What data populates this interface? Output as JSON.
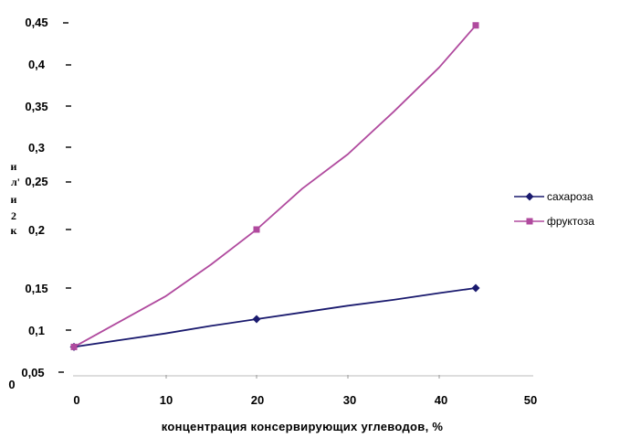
{
  "chart_data": {
    "type": "line",
    "xlabel": "концентрация консервирующих углеводов, %",
    "ylabel_parts": [
      "и",
      "л'",
      "и",
      "2",
      "к"
    ],
    "xlim": [
      0,
      50
    ],
    "ylim": [
      0.05,
      0.45
    ],
    "x_ticks": [
      "0",
      "10",
      "20",
      "30",
      "40",
      "50"
    ],
    "y_ticks": [
      "0,05",
      "0,1",
      "0,15",
      "0,2",
      "0,25",
      "0,3",
      "0,35",
      "0,4",
      "0,45"
    ],
    "y_zero_label": "0",
    "grid": false,
    "legend_position": "right",
    "series": [
      {
        "name": "сахароза",
        "color": "#1a1a6e",
        "marker": "diamond",
        "points": [
          [
            0,
            0.08
          ],
          [
            20,
            0.113
          ],
          [
            44,
            0.15
          ]
        ],
        "curve": [
          [
            0,
            0.08
          ],
          [
            5,
            0.088
          ],
          [
            10,
            0.096
          ],
          [
            15,
            0.105
          ],
          [
            20,
            0.113
          ],
          [
            25,
            0.121
          ],
          [
            30,
            0.129
          ],
          [
            35,
            0.136
          ],
          [
            40,
            0.144
          ],
          [
            44,
            0.15
          ]
        ]
      },
      {
        "name": "фруктоза",
        "color": "#b04a9e",
        "marker": "square",
        "points": [
          [
            0,
            0.08
          ],
          [
            20,
            0.2
          ],
          [
            44,
            0.447
          ]
        ],
        "curve": [
          [
            0,
            0.08
          ],
          [
            5,
            0.11
          ],
          [
            10,
            0.14
          ],
          [
            15,
            0.17
          ],
          [
            20,
            0.2
          ],
          [
            25,
            0.243
          ],
          [
            30,
            0.29
          ],
          [
            35,
            0.343
          ],
          [
            40,
            0.397
          ],
          [
            44,
            0.447
          ]
        ]
      }
    ]
  }
}
